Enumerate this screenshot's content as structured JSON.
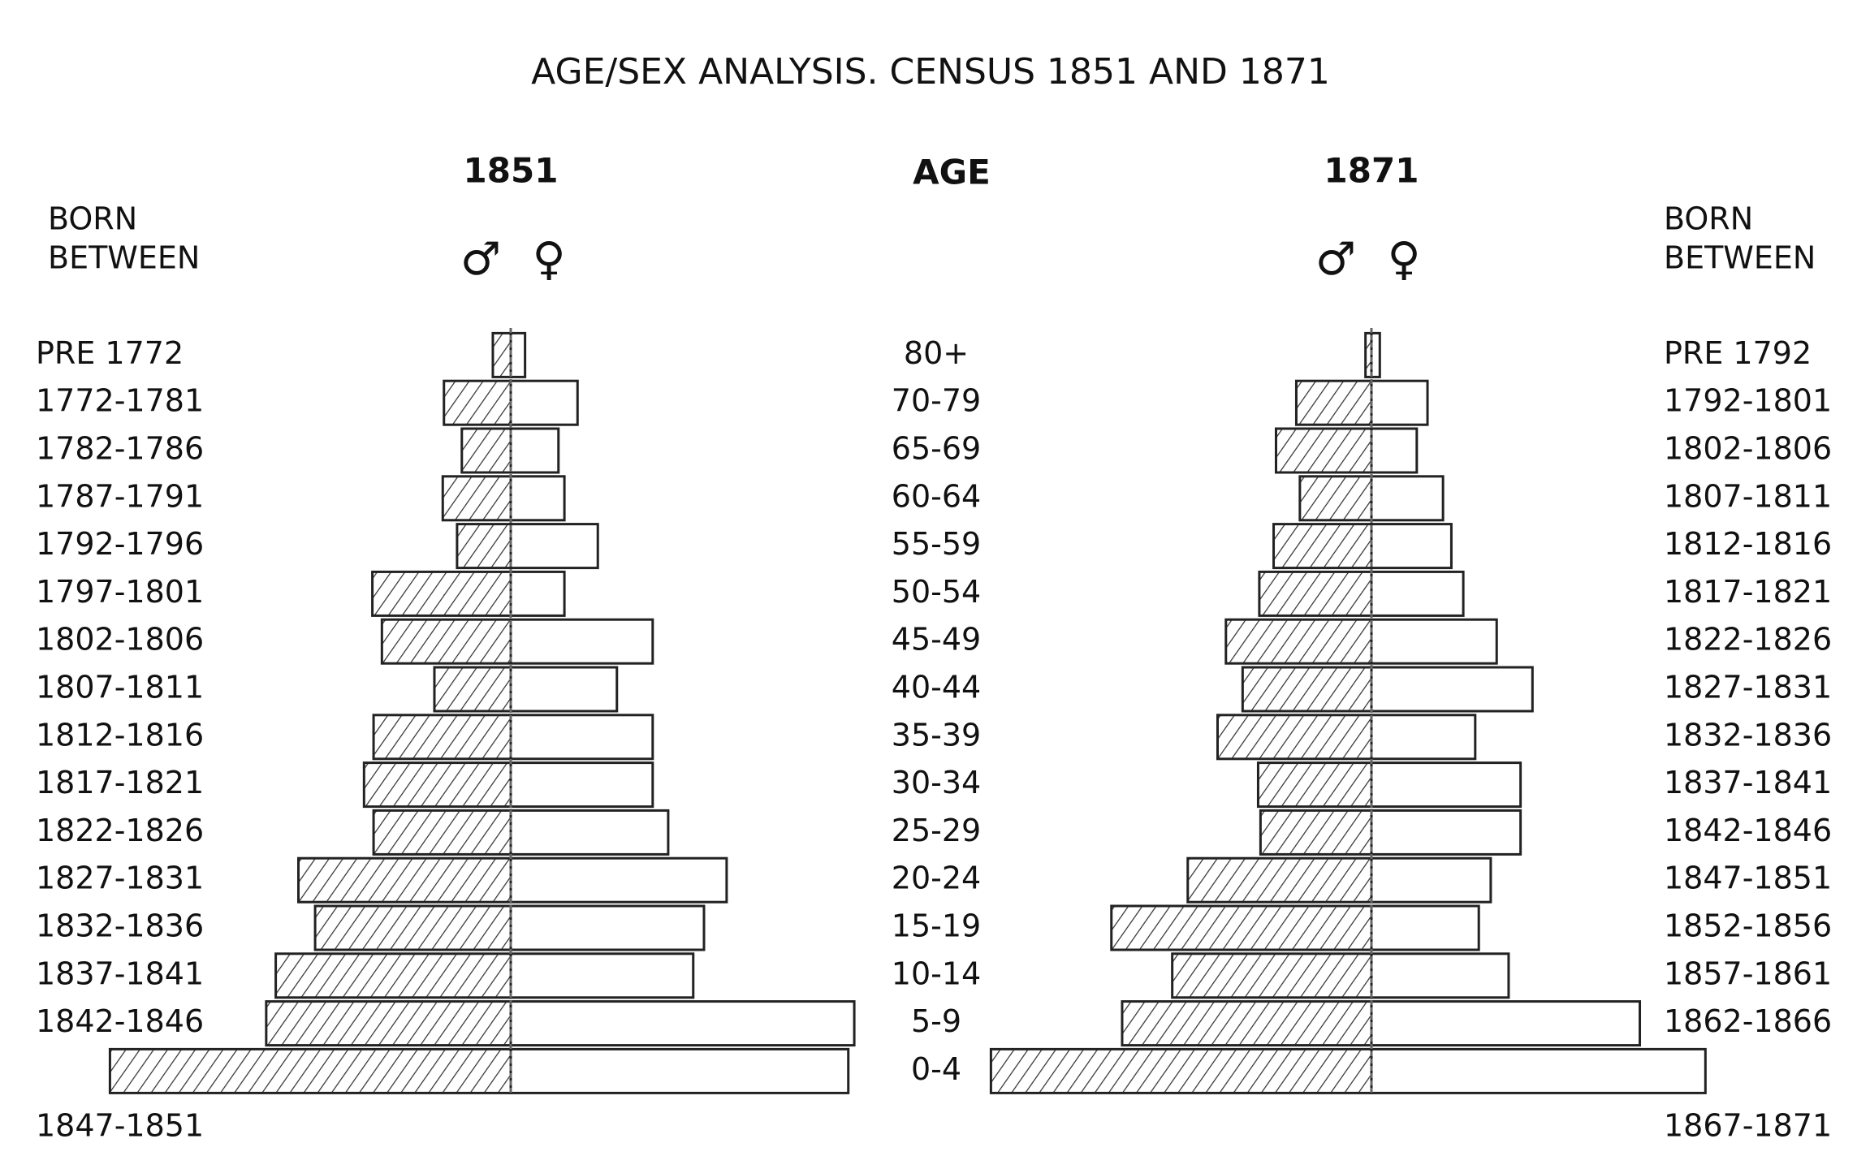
{
  "title": "AGE/SEX ANALYSIS. CENSUS 1851 AND 1871",
  "age_axis": {
    "header": "AGE",
    "categories": [
      "80+",
      "70-79",
      "65-69",
      "60-64",
      "55-59",
      "50-54",
      "45-49",
      "40-44",
      "35-39",
      "30-34",
      "25-29",
      "20-24",
      "15-19",
      "10-14",
      "5-9",
      "0-4"
    ]
  },
  "chart_data": [
    {
      "type": "pyramid",
      "title": "1851",
      "side": "left",
      "cohort_header": [
        "BORN",
        "BETWEEN"
      ],
      "cohorts": [
        "PRE 1772",
        "1772-1781",
        "1782-1786",
        "1787-1791",
        "1792-1796",
        "1797-1801",
        "1802-1806",
        "1807-1811",
        "1812-1816",
        "1817-1821",
        "1822-1826",
        "1827-1831",
        "1832-1836",
        "1837-1841",
        "1842-1846",
        "1847-1851"
      ],
      "series": [
        {
          "name": "♂",
          "color": "#222222",
          "hatched": true,
          "values": [
            15,
            56,
            41,
            57,
            45,
            116,
            108,
            64,
            115,
            123,
            115,
            178,
            164,
            197,
            205,
            336
          ]
        },
        {
          "name": "♀",
          "color": "#222222",
          "hatched": false,
          "values": [
            12,
            56,
            40,
            45,
            73,
            45,
            119,
            89,
            119,
            119,
            132,
            181,
            162,
            153,
            288,
            283
          ]
        }
      ]
    },
    {
      "type": "pyramid",
      "title": "1871",
      "side": "right",
      "cohort_header": [
        "BORN",
        "BETWEEN"
      ],
      "cohorts": [
        "PRE 1792",
        "1792-1801",
        "1802-1806",
        "1807-1811",
        "1812-1816",
        "1817-1821",
        "1822-1826",
        "1827-1831",
        "1832-1836",
        "1837-1841",
        "1842-1846",
        "1847-1851",
        "1852-1856",
        "1857-1861",
        "1862-1866",
        "1867-1871"
      ],
      "series": [
        {
          "name": "♂",
          "color": "#222222",
          "hatched": true,
          "values": [
            5,
            63,
            80,
            60,
            82,
            94,
            122,
            108,
            129,
            95,
            93,
            154,
            218,
            167,
            209,
            319
          ]
        },
        {
          "name": "♀",
          "color": "#222222",
          "hatched": false,
          "values": [
            7,
            47,
            38,
            60,
            67,
            77,
            105,
            135,
            87,
            125,
            125,
            100,
            90,
            115,
            225,
            280
          ]
        }
      ]
    }
  ]
}
